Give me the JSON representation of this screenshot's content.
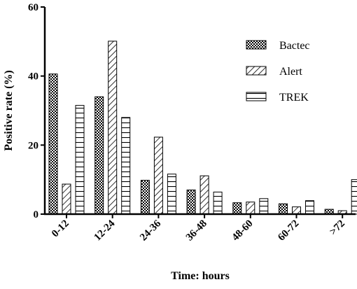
{
  "chart_data": {
    "type": "bar",
    "title": "",
    "xlabel": "Time: hours",
    "ylabel": "Positive rate (%)",
    "ylim": [
      0,
      60
    ],
    "yticks": [
      0,
      20,
      40,
      60
    ],
    "categories": [
      "0-12",
      "12-24",
      "24-36",
      "36-48",
      "48-60",
      "60-72",
      ">72"
    ],
    "series": [
      {
        "name": "Bactec",
        "pattern": "checker",
        "values": [
          40.6,
          34.0,
          9.8,
          7.0,
          3.3,
          3.0,
          1.4
        ]
      },
      {
        "name": "Alert",
        "pattern": "diagonal",
        "values": [
          8.7,
          50.1,
          22.3,
          11.1,
          3.5,
          2.1,
          1.0
        ]
      },
      {
        "name": "TREK",
        "pattern": "horizontal",
        "values": [
          31.5,
          28.0,
          11.6,
          6.4,
          4.5,
          3.9,
          10.0
        ]
      }
    ],
    "legend_position": "top-right",
    "grid": false
  }
}
